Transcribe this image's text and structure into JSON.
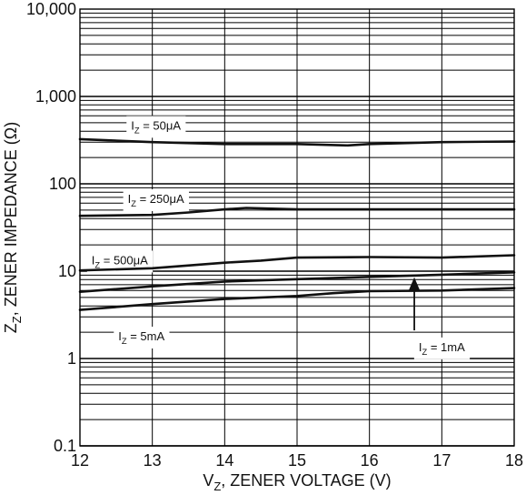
{
  "chart_data": {
    "type": "line",
    "xlabel_main": "V",
    "xlabel_sub": "Z",
    "xlabel_rest": ", ZENER VOLTAGE (V)",
    "ylabel_main": "Z",
    "ylabel_sub": "Z",
    "ylabel_rest": ", ZENER IMPEDANCE (Ω)",
    "x_scale": "linear",
    "y_scale": "log",
    "xlim": [
      12,
      18
    ],
    "ylim": [
      0.1,
      10000
    ],
    "x_ticks": [
      {
        "value": 12,
        "label": "12"
      },
      {
        "value": 13,
        "label": "13"
      },
      {
        "value": 14,
        "label": "14"
      },
      {
        "value": 15,
        "label": "15"
      },
      {
        "value": 16,
        "label": "16"
      },
      {
        "value": 17,
        "label": "17"
      },
      {
        "value": 18,
        "label": "18"
      }
    ],
    "y_ticks": [
      {
        "value": 0.1,
        "label": "0.1"
      },
      {
        "value": 1,
        "label": "1"
      },
      {
        "value": 10,
        "label": "10"
      },
      {
        "value": 100,
        "label": "100"
      },
      {
        "value": 1000,
        "label": "1,000"
      },
      {
        "value": 10000,
        "label": "10,000"
      }
    ],
    "grid": true,
    "colors": {
      "line": "#111111",
      "grid": "#000000",
      "background": "#ffffff"
    },
    "series": [
      {
        "name": "I_Z = 50μA",
        "label_main": "I",
        "label_sub": "Z",
        "label_rest": " = 50μA",
        "x": [
          12,
          13,
          14,
          15,
          15.7,
          16,
          17,
          18
        ],
        "y": [
          325,
          300,
          285,
          285,
          275,
          285,
          300,
          305
        ]
      },
      {
        "name": "I_Z = 250μA",
        "label_main": "I",
        "label_sub": "Z",
        "label_rest": " = 250μA",
        "x": [
          12,
          13,
          13.5,
          14,
          14.3,
          15,
          16,
          17,
          18
        ],
        "y": [
          43,
          44,
          47,
          51,
          53,
          51,
          51,
          51,
          51
        ]
      },
      {
        "name": "I_Z = 500μA",
        "label_main": "I",
        "label_sub": "Z",
        "label_rest": " = 500μA",
        "x": [
          12,
          13,
          14,
          14.5,
          15,
          16,
          17,
          18
        ],
        "y": [
          10.2,
          10.8,
          12.5,
          13.2,
          14.3,
          14.5,
          14.3,
          15.2
        ]
      },
      {
        "name": "I_Z = 1mA",
        "label_main": "I",
        "label_sub": "Z",
        "label_rest": " = 1mA",
        "x": [
          12,
          13,
          14,
          15,
          16,
          17,
          18
        ],
        "y": [
          5.8,
          6.7,
          7.6,
          8.1,
          8.6,
          9.1,
          9.7
        ]
      },
      {
        "name": "I_Z = 5mA",
        "label_main": "I",
        "label_sub": "Z",
        "label_rest": " = 5mA",
        "x": [
          12,
          13,
          14,
          15,
          15.5,
          16,
          17,
          18
        ],
        "y": [
          3.6,
          4.2,
          4.8,
          5.2,
          5.6,
          5.9,
          6.0,
          6.4
        ]
      }
    ],
    "annotations": [
      {
        "type": "arrow",
        "series": "I_Z = 1mA",
        "x": 16.62,
        "y_from": 2.1,
        "y_to": 8.5
      }
    ]
  }
}
